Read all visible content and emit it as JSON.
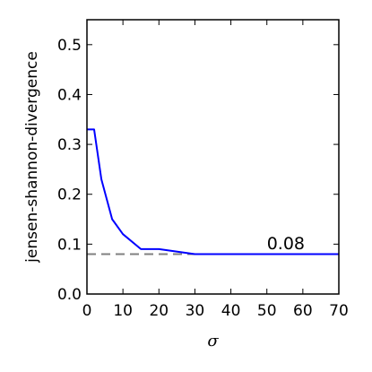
{
  "chart_data": {
    "type": "line",
    "xlabel": "σ",
    "ylabel": "jensen-shannon-divergence",
    "xlim": [
      0,
      70
    ],
    "ylim": [
      0,
      0.55
    ],
    "x_ticks": [
      0,
      10,
      20,
      30,
      40,
      50,
      60,
      70
    ],
    "x_tick_labels": [
      "0",
      "10",
      "20",
      "30",
      "40",
      "50",
      "60",
      "70"
    ],
    "y_ticks": [
      0.0,
      0.1,
      0.2,
      0.3,
      0.4,
      0.5
    ],
    "y_tick_labels": [
      "0.0",
      "0.1",
      "0.2",
      "0.3",
      "0.4",
      "0.5"
    ],
    "grid": false,
    "series": [
      {
        "color": "#0000ff",
        "x": [
          0,
          2,
          4,
          7,
          10,
          15,
          20,
          30,
          40,
          50,
          60,
          70
        ],
        "y": [
          0.33,
          0.33,
          0.23,
          0.15,
          0.12,
          0.09,
          0.09,
          0.08,
          0.08,
          0.08,
          0.08,
          0.08
        ]
      }
    ],
    "reference_line": {
      "y": 0.08,
      "style": "dashed",
      "color": "#808080"
    },
    "annotations": [
      {
        "text": "0.08",
        "x": 50,
        "y": 0.09
      }
    ]
  }
}
